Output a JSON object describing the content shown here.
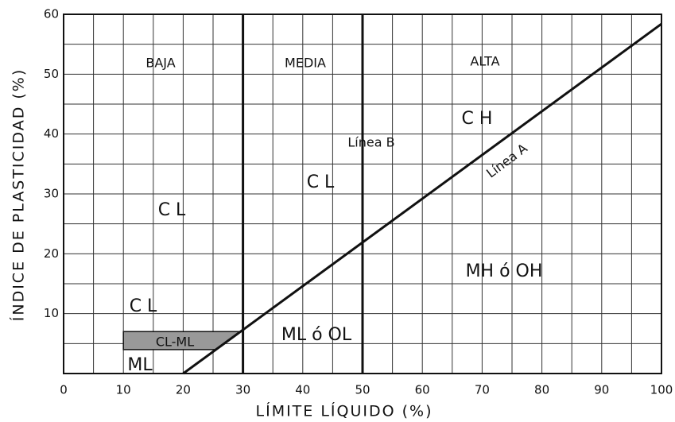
{
  "chart_data": {
    "type": "line",
    "xlabel": "LÍMITE LÍQUIDO (%)",
    "ylabel": "ÍNDICE DE PLASTICIDAD (%)",
    "xlim": [
      0,
      100
    ],
    "ylim": [
      0,
      60
    ],
    "xticks": [
      0,
      10,
      20,
      30,
      40,
      50,
      60,
      70,
      80,
      90,
      100
    ],
    "yticks": [
      10,
      20,
      30,
      40,
      50,
      60
    ],
    "xminor": [
      5,
      15,
      25,
      35,
      45,
      55,
      65,
      75,
      85,
      95
    ],
    "yminor": [
      5,
      15,
      25,
      35,
      45,
      55
    ],
    "grid": true,
    "series": [
      {
        "name": "Línea A",
        "color": "#111111",
        "x": [
          20,
          100
        ],
        "values": [
          0,
          58.4
        ]
      },
      {
        "name": "Línea B",
        "color": "#111111",
        "x": [
          50,
          50
        ],
        "values": [
          0,
          60
        ]
      },
      {
        "color": "#111111",
        "x": [
          30,
          30
        ],
        "values": [
          0,
          60
        ]
      }
    ],
    "band": {
      "label": "CL-ML",
      "color": "#999999",
      "x": [
        10,
        25.48,
        29.59,
        10
      ],
      "values": [
        4,
        4,
        7,
        7
      ]
    },
    "annotations": [
      "BAJA",
      "MEDIA",
      "ALTA",
      "C H",
      "C L",
      "C L",
      "MH ó OH",
      "C L",
      "ML ó OL",
      "ML"
    ]
  }
}
